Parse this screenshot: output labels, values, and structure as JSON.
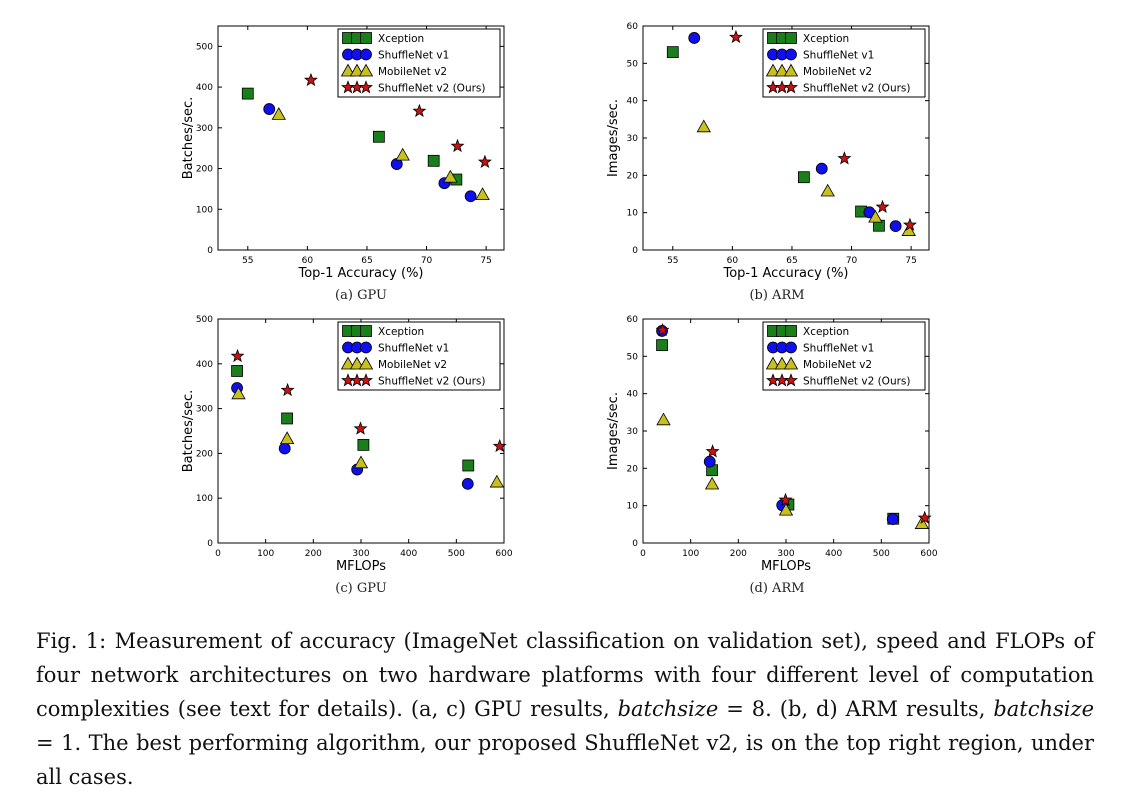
{
  "colors": {
    "Xception": "#1a7f1a",
    "ShuffleNet v1": "#1010ee",
    "MobileNet v2": "#c8c020",
    "ShuffleNet v2 (Ours)": "#cc1111"
  },
  "markers": {
    "Xception": "square",
    "ShuffleNet v1": "circle",
    "MobileNet v2": "triangle",
    "ShuffleNet v2 (Ours)": "star"
  },
  "legend_labels": [
    "Xception",
    "ShuffleNet v1",
    "MobileNet v2",
    "ShuffleNet v2 (Ours)"
  ],
  "chart_data": [
    {
      "id": "a",
      "type": "scatter",
      "subcaption": "(a) GPU",
      "xlabel": "Top-1 Accuracy (%)",
      "ylabel": "Batches/sec.",
      "xlim": [
        52.5,
        76.5
      ],
      "ylim": [
        0,
        550
      ],
      "xticks": [
        55,
        60,
        65,
        70,
        75
      ],
      "yticks": [
        0,
        100,
        200,
        300,
        400,
        500
      ],
      "legend_position": "top-right",
      "series": [
        {
          "name": "Xception",
          "x": [
            55.0,
            66.0,
            70.6,
            72.5
          ],
          "y": [
            384,
            278,
            219,
            173
          ]
        },
        {
          "name": "ShuffleNet v1",
          "x": [
            56.8,
            67.5,
            71.5,
            73.7
          ],
          "y": [
            346,
            211,
            164,
            132
          ]
        },
        {
          "name": "MobileNet v2",
          "x": [
            57.6,
            68.0,
            72.0,
            74.7
          ],
          "y": [
            333,
            233,
            179,
            136
          ]
        },
        {
          "name": "ShuffleNet v2 (Ours)",
          "x": [
            60.3,
            69.4,
            72.6,
            74.9
          ],
          "y": [
            417,
            341,
            255,
            216
          ]
        }
      ]
    },
    {
      "id": "b",
      "type": "scatter",
      "subcaption": "(b) ARM",
      "xlabel": "Top-1 Accuracy (%)",
      "ylabel": "Images/sec.",
      "xlim": [
        52.5,
        76.5
      ],
      "ylim": [
        0,
        60
      ],
      "xticks": [
        55,
        60,
        65,
        70,
        75
      ],
      "yticks": [
        0,
        10,
        20,
        30,
        40,
        50,
        60
      ],
      "legend_position": "top-right",
      "series": [
        {
          "name": "Xception",
          "x": [
            55.0,
            66.0,
            70.8,
            72.3
          ],
          "y": [
            53,
            19.5,
            10.3,
            6.5
          ]
        },
        {
          "name": "ShuffleNet v1",
          "x": [
            56.8,
            67.5,
            71.5,
            73.7
          ],
          "y": [
            56.8,
            21.8,
            10.1,
            6.4
          ]
        },
        {
          "name": "MobileNet v2",
          "x": [
            57.6,
            68.0,
            72.0,
            74.8
          ],
          "y": [
            33,
            15.8,
            8.8,
            5.2
          ]
        },
        {
          "name": "ShuffleNet v2 (Ours)",
          "x": [
            60.3,
            69.4,
            72.6,
            74.9
          ],
          "y": [
            57,
            24.5,
            11.5,
            6.7
          ]
        }
      ]
    },
    {
      "id": "c",
      "type": "scatter",
      "subcaption": "(c) GPU",
      "xlabel": "MFLOPs",
      "ylabel": "Batches/sec.",
      "xlim": [
        0,
        600
      ],
      "ylim": [
        0,
        500
      ],
      "xticks": [
        0,
        100,
        200,
        300,
        400,
        500,
        600
      ],
      "yticks": [
        0,
        100,
        200,
        300,
        400,
        500
      ],
      "legend_position": "top-right",
      "series": [
        {
          "name": "Xception",
          "x": [
            40,
            145,
            305,
            525
          ],
          "y": [
            384,
            278,
            219,
            173
          ]
        },
        {
          "name": "ShuffleNet v1",
          "x": [
            40,
            140,
            292,
            524
          ],
          "y": [
            346,
            211,
            164,
            132
          ]
        },
        {
          "name": "MobileNet v2",
          "x": [
            43,
            145,
            300,
            585
          ],
          "y": [
            333,
            233,
            179,
            136
          ]
        },
        {
          "name": "ShuffleNet v2 (Ours)",
          "x": [
            41,
            146,
            299,
            591
          ],
          "y": [
            417,
            341,
            255,
            216
          ]
        }
      ]
    },
    {
      "id": "d",
      "type": "scatter",
      "subcaption": "(d) ARM",
      "xlabel": "MFLOPs",
      "ylabel": "Images/sec.",
      "xlim": [
        0,
        600
      ],
      "ylim": [
        0,
        60
      ],
      "xticks": [
        0,
        100,
        200,
        300,
        400,
        500,
        600
      ],
      "yticks": [
        0,
        10,
        20,
        30,
        40,
        50,
        60
      ],
      "legend_position": "top-right",
      "series": [
        {
          "name": "Xception",
          "x": [
            40,
            145,
            305,
            525
          ],
          "y": [
            53,
            19.5,
            10.3,
            6.5
          ]
        },
        {
          "name": "ShuffleNet v1",
          "x": [
            40,
            140,
            292,
            524
          ],
          "y": [
            56.8,
            21.8,
            10.1,
            6.4
          ]
        },
        {
          "name": "MobileNet v2",
          "x": [
            43,
            145,
            300,
            585
          ],
          "y": [
            33,
            15.8,
            8.8,
            5.2
          ]
        },
        {
          "name": "ShuffleNet v2 (Ours)",
          "x": [
            41,
            146,
            299,
            591
          ],
          "y": [
            57,
            24.5,
            11.5,
            6.7
          ]
        }
      ]
    }
  ],
  "caption": {
    "label": "Fig. 1:",
    "p1": "Measurement of accuracy (ImageNet classification on validation set), speed and FLOPs of four network architectures on two hardware platforms with four different level of computation complexities (see text for details). (a, c) GPU results,",
    "var1": "batchsize",
    "eq1": "= 8. (b, d) ARM results,",
    "var2": "batchsize",
    "eq2": "= 1. The best performing algorithm, our proposed ShuffleNet v2, is on the top right region, under all cases."
  }
}
